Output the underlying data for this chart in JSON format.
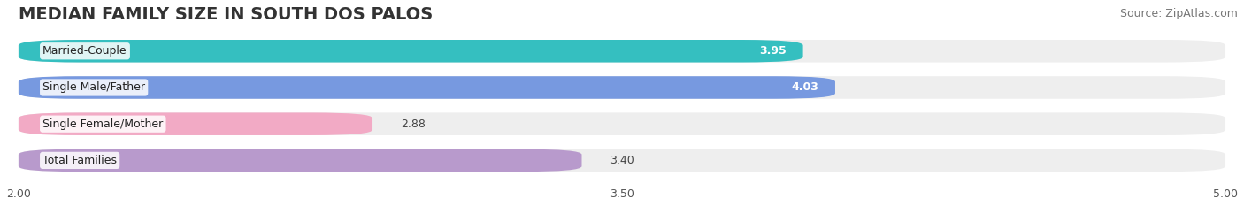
{
  "title": "MEDIAN FAMILY SIZE IN SOUTH DOS PALOS",
  "source": "Source: ZipAtlas.com",
  "categories": [
    "Married-Couple",
    "Single Male/Father",
    "Single Female/Mother",
    "Total Families"
  ],
  "values": [
    3.95,
    4.03,
    2.88,
    3.4
  ],
  "bar_colors": [
    "#35bfc0",
    "#7799e0",
    "#f2aac5",
    "#b89acc"
  ],
  "label_colors": [
    "white",
    "white",
    "#666666",
    "#666666"
  ],
  "xmin": 2.0,
  "xmax": 5.0,
  "xticks": [
    2.0,
    3.5,
    5.0
  ],
  "xtick_labels": [
    "2.00",
    "3.50",
    "5.00"
  ],
  "background_color": "#ffffff",
  "bar_bg_color": "#eeeeee",
  "title_fontsize": 14,
  "source_fontsize": 9,
  "value_fontsize": 9,
  "category_fontsize": 9
}
